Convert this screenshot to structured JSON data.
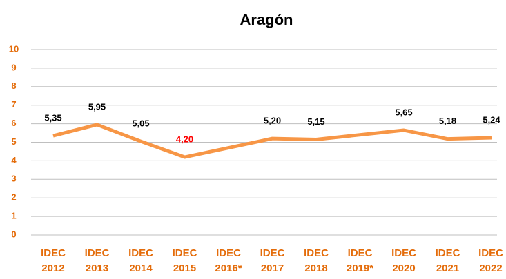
{
  "chart_data": {
    "type": "line",
    "title": "Aragón",
    "categories": [
      "IDEC 2012",
      "IDEC 2013",
      "IDEC 2014",
      "IDEC 2015",
      "IDEC 2016*",
      "IDEC 2017",
      "IDEC 2018",
      "IDEC 2019*",
      "IDEC 2020",
      "IDEC 2021",
      "IDEC 2022"
    ],
    "series": [
      {
        "name": "Aragón",
        "color": "#f79646",
        "values": [
          5.35,
          5.95,
          5.05,
          4.2,
          null,
          5.2,
          5.15,
          null,
          5.65,
          5.18,
          5.24
        ],
        "value_labels": [
          "5,35",
          "5,95",
          "5,05",
          "4,20",
          null,
          "5,20",
          "5,15",
          null,
          "5,65",
          "5,18",
          "5,24"
        ],
        "value_label_colors": [
          "#000000",
          "#000000",
          "#000000",
          "#ff0000",
          null,
          "#000000",
          "#000000",
          null,
          "#000000",
          "#000000",
          "#000000"
        ]
      }
    ],
    "ylim": [
      0,
      10
    ],
    "yticks": [
      0,
      1,
      2,
      3,
      4,
      5,
      6,
      7,
      8,
      9,
      10
    ],
    "grid": true,
    "tick_label_color": "#e46c0a"
  }
}
